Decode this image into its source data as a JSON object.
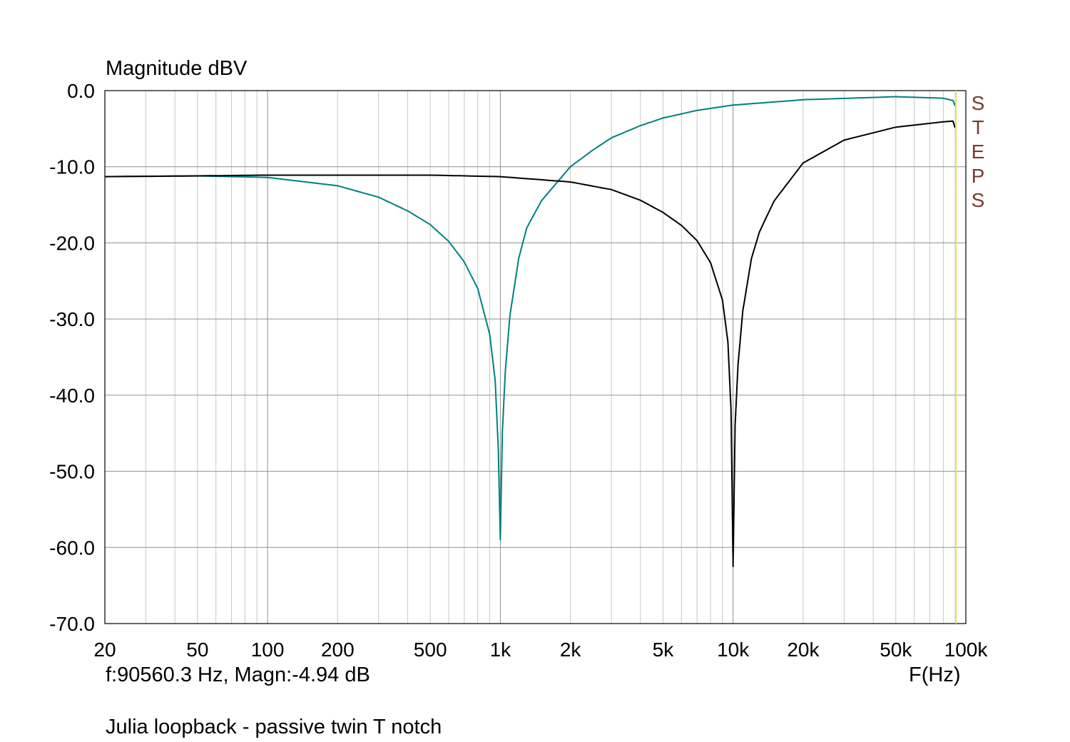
{
  "chart_data": {
    "type": "line",
    "ylabel": "Magnitude dBV",
    "xlabel": "F(Hz)",
    "xscale": "log",
    "xlim": [
      20,
      100000
    ],
    "ylim": [
      -70,
      0
    ],
    "x_ticks": [
      20,
      50,
      100,
      200,
      500,
      1000,
      2000,
      5000,
      10000,
      20000,
      50000,
      100000
    ],
    "x_tick_labels": [
      "20",
      "50",
      "100",
      "200",
      "500",
      "1k",
      "2k",
      "5k",
      "10k",
      "20k",
      "50k",
      "100k"
    ],
    "y_ticks": [
      0,
      -10,
      -20,
      -30,
      -40,
      -50,
      -60,
      -70
    ],
    "y_tick_labels": [
      "0.0",
      "-10.0",
      "-20.0",
      "-30.0",
      "-40.0",
      "-50.0",
      "-60.0",
      "-70.0"
    ],
    "grid": true,
    "series": [
      {
        "color": "#008080",
        "x": [
          20,
          50,
          100,
          200,
          300,
          400,
          500,
          600,
          700,
          800,
          900,
          950,
          980,
          1000,
          1020,
          1050,
          1100,
          1200,
          1300,
          1500,
          2000,
          2500,
          3000,
          4000,
          5000,
          7000,
          10000,
          20000,
          50000,
          80000,
          88000,
          90000
        ],
        "y": [
          -11.3,
          -11.2,
          -11.4,
          -12.5,
          -14.0,
          -15.8,
          -17.6,
          -19.8,
          -22.5,
          -26.0,
          -32.0,
          -38.0,
          -47.0,
          -59.0,
          -45.0,
          -37.0,
          -29.5,
          -22.0,
          -18.0,
          -14.5,
          -10.0,
          -7.8,
          -6.2,
          -4.6,
          -3.6,
          -2.6,
          -1.9,
          -1.2,
          -0.8,
          -1.0,
          -1.3,
          -2.0
        ]
      },
      {
        "color": "#000000",
        "x": [
          20,
          50,
          100,
          200,
          500,
          1000,
          2000,
          3000,
          4000,
          5000,
          6000,
          7000,
          8000,
          9000,
          9500,
          9800,
          10000,
          10200,
          10500,
          11000,
          12000,
          13000,
          15000,
          20000,
          30000,
          50000,
          80000,
          88000,
          90000
        ],
        "y": [
          -11.3,
          -11.2,
          -11.1,
          -11.1,
          -11.1,
          -11.3,
          -12.0,
          -13.0,
          -14.4,
          -16.0,
          -17.7,
          -19.7,
          -22.6,
          -27.5,
          -33.0,
          -42.0,
          -62.5,
          -44.0,
          -36.0,
          -29.0,
          -22.0,
          -18.5,
          -14.5,
          -9.5,
          -6.5,
          -4.8,
          -4.1,
          -4.0,
          -4.9
        ]
      }
    ],
    "cursor": {
      "x": 90560.3,
      "color": "#e0e060"
    },
    "readout": "f:90560.3 Hz, Magn:-4.94 dB",
    "caption": "Julia loopback - passive twin T notch",
    "steps_label": [
      "S",
      "T",
      "E",
      "P",
      "S"
    ],
    "steps_color": "#7a3a32"
  }
}
